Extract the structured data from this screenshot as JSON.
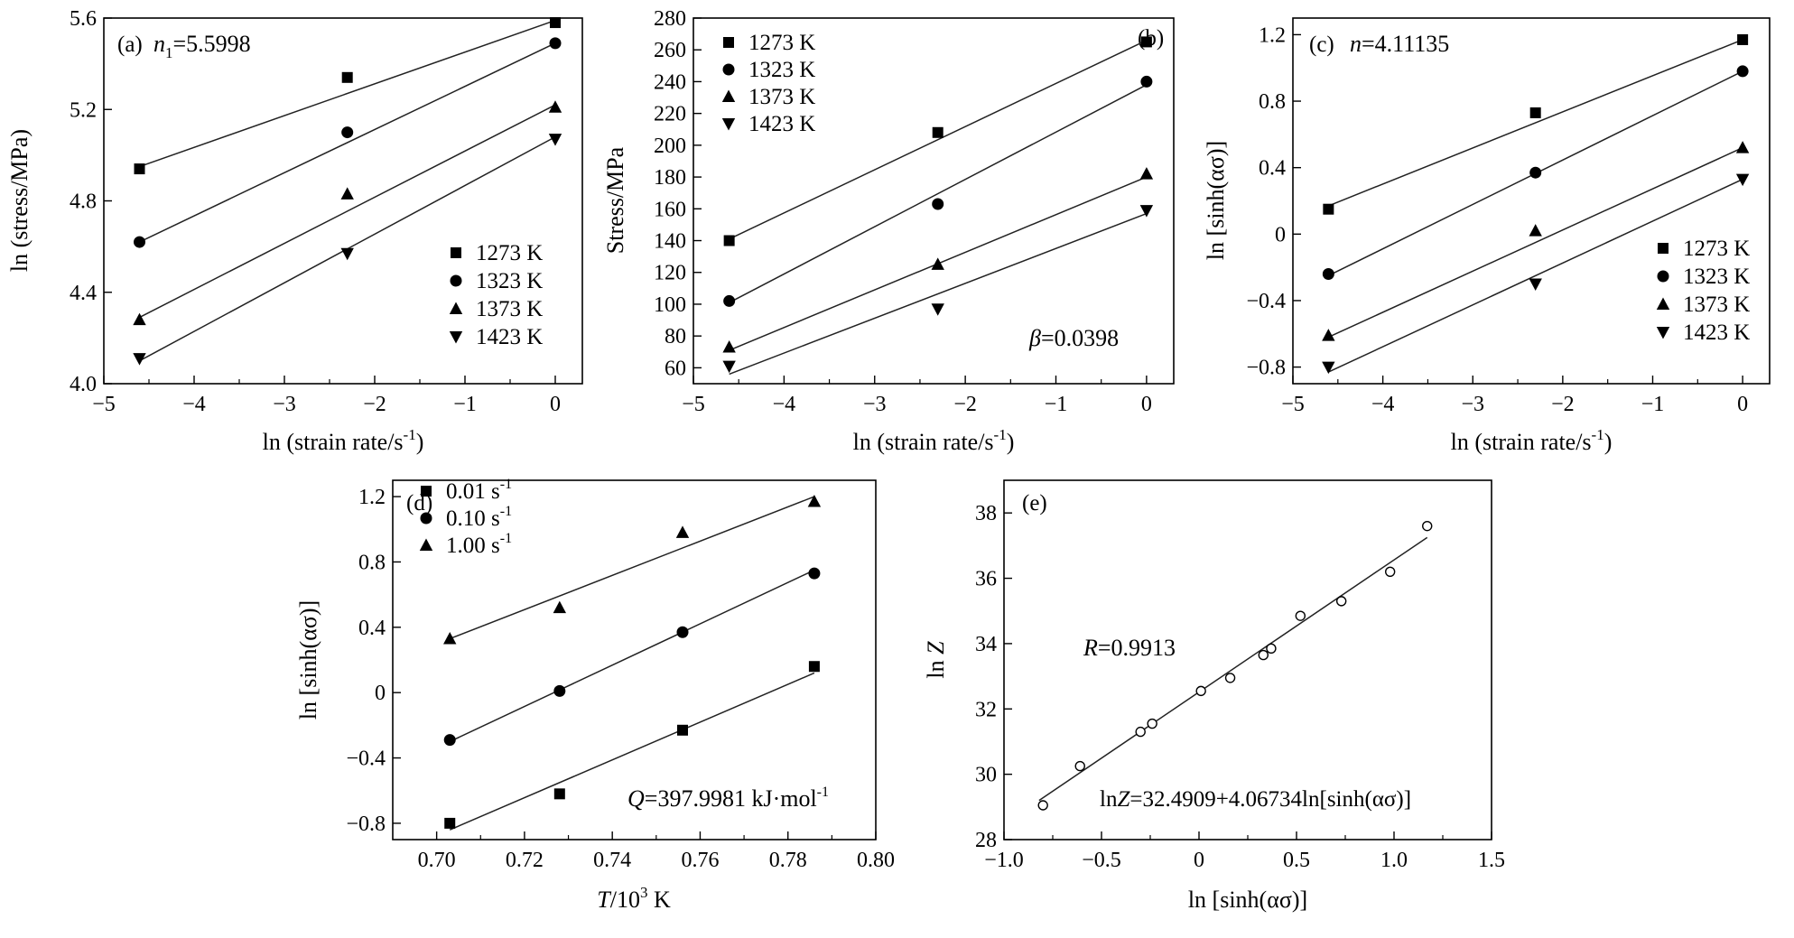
{
  "chart_data": [
    {
      "id": "a",
      "type": "scatter",
      "panel_label": "(a)",
      "annotation": {
        "pre": "",
        "italic": "n",
        "sub": "1",
        "post": "=5.5998"
      },
      "xlabel": {
        "main": "ln (strain rate/s",
        "sup": "-1",
        "tail": ")"
      },
      "ylabel": {
        "main": "ln (stress/MPa)"
      },
      "xlim": [
        -5,
        0.3
      ],
      "ylim": [
        4.0,
        5.6
      ],
      "xticks": [
        -5,
        -4,
        -3,
        -2,
        -1,
        0
      ],
      "xtick_labels": [
        "−5",
        "−4",
        "−3",
        "−2",
        "−1",
        "0"
      ],
      "yticks": [
        4.0,
        4.4,
        4.8,
        5.2,
        5.6
      ],
      "ytick_labels": [
        "4.0",
        "4.4",
        "4.8",
        "5.2",
        "5.6"
      ],
      "legend_position": "bottom-right",
      "series": [
        {
          "name": "1273 K",
          "marker": "square",
          "x": [
            -4.605,
            -2.303,
            0
          ],
          "y": [
            4.94,
            5.34,
            5.58
          ],
          "fit": [
            [
              -4.605,
              4.95
            ],
            [
              0,
              5.59
            ]
          ]
        },
        {
          "name": "1323 K",
          "marker": "circle",
          "x": [
            -4.605,
            -2.303,
            0
          ],
          "y": [
            4.62,
            5.1,
            5.49
          ],
          "fit": [
            [
              -4.605,
              4.62
            ],
            [
              0,
              5.49
            ]
          ]
        },
        {
          "name": "1373 K",
          "marker": "triangle-up",
          "x": [
            -4.605,
            -2.303,
            0
          ],
          "y": [
            4.28,
            4.83,
            5.21
          ],
          "fit": [
            [
              -4.605,
              4.29
            ],
            [
              0,
              5.22
            ]
          ]
        },
        {
          "name": "1423 K",
          "marker": "triangle-down",
          "x": [
            -4.605,
            -2.303,
            0
          ],
          "y": [
            4.11,
            4.57,
            5.07
          ],
          "fit": [
            [
              -4.605,
              4.1
            ],
            [
              0,
              5.08
            ]
          ]
        }
      ]
    },
    {
      "id": "b",
      "type": "scatter",
      "panel_label": "(b)",
      "annotation": {
        "pre": "",
        "italic": "β",
        "sub": "",
        "post": "=0.0398"
      },
      "xlabel": {
        "main": "ln (strain rate/s",
        "sup": "-1",
        "tail": ")"
      },
      "ylabel": {
        "main": "Stress/MPa"
      },
      "xlim": [
        -5,
        0.3
      ],
      "ylim": [
        50,
        280
      ],
      "xticks": [
        -5,
        -4,
        -3,
        -2,
        -1,
        0
      ],
      "xtick_labels": [
        "−5",
        "−4",
        "−3",
        "−2",
        "−1",
        "0"
      ],
      "yticks": [
        60,
        80,
        100,
        120,
        140,
        160,
        180,
        200,
        220,
        240,
        260,
        280
      ],
      "ytick_labels": [
        "60",
        "80",
        "100",
        "120",
        "140",
        "160",
        "180",
        "200",
        "220",
        "240",
        "260",
        "280"
      ],
      "legend_position": "top-left",
      "series": [
        {
          "name": "1273 K",
          "marker": "square",
          "x": [
            -4.605,
            -2.303,
            0
          ],
          "y": [
            140,
            208,
            265
          ],
          "fit": [
            [
              -4.605,
              141
            ],
            [
              0,
              266
            ]
          ]
        },
        {
          "name": "1323 K",
          "marker": "circle",
          "x": [
            -4.605,
            -2.303,
            0
          ],
          "y": [
            102,
            163,
            240
          ],
          "fit": [
            [
              -4.605,
              101
            ],
            [
              0,
              238
            ]
          ]
        },
        {
          "name": "1373 K",
          "marker": "triangle-up",
          "x": [
            -4.605,
            -2.303,
            0
          ],
          "y": [
            73,
            125,
            182
          ],
          "fit": [
            [
              -4.605,
              71
            ],
            [
              0,
              180
            ]
          ]
        },
        {
          "name": "1423 K",
          "marker": "triangle-down",
          "x": [
            -4.605,
            -2.303,
            0
          ],
          "y": [
            61,
            97,
            159
          ],
          "fit": [
            [
              -4.605,
              56
            ],
            [
              0,
              157
            ]
          ]
        }
      ]
    },
    {
      "id": "c",
      "type": "scatter",
      "panel_label": "(c)",
      "annotation": {
        "pre": "",
        "italic": "n",
        "sub": "",
        "post": "=4.11135"
      },
      "xlabel": {
        "main": "ln (strain rate/s",
        "sup": "-1",
        "tail": ")"
      },
      "ylabel": {
        "main": "ln [sinh(ασ)]"
      },
      "xlim": [
        -5,
        0.3
      ],
      "ylim": [
        -0.9,
        1.3
      ],
      "xticks": [
        -5,
        -4,
        -3,
        -2,
        -1,
        0
      ],
      "xtick_labels": [
        "−5",
        "−4",
        "−3",
        "−2",
        "−1",
        "0"
      ],
      "yticks": [
        -0.8,
        -0.4,
        0,
        0.4,
        0.8,
        1.2
      ],
      "ytick_labels": [
        "−0.8",
        "−0.4",
        "0",
        "0.4",
        "0.8",
        "1.2"
      ],
      "legend_position": "bottom-right",
      "series": [
        {
          "name": "1273 K",
          "marker": "square",
          "x": [
            -4.605,
            -2.303,
            0
          ],
          "y": [
            0.15,
            0.73,
            1.17
          ],
          "fit": [
            [
              -4.605,
              0.17
            ],
            [
              0,
              1.17
            ]
          ]
        },
        {
          "name": "1323 K",
          "marker": "circle",
          "x": [
            -4.605,
            -2.303,
            0
          ],
          "y": [
            -0.24,
            0.37,
            0.98
          ],
          "fit": [
            [
              -4.605,
              -0.25
            ],
            [
              0,
              0.98
            ]
          ]
        },
        {
          "name": "1373 K",
          "marker": "triangle-up",
          "x": [
            -4.605,
            -2.303,
            0
          ],
          "y": [
            -0.61,
            0.02,
            0.52
          ],
          "fit": [
            [
              -4.605,
              -0.62
            ],
            [
              0,
              0.52
            ]
          ]
        },
        {
          "name": "1423 K",
          "marker": "triangle-down",
          "x": [
            -4.605,
            -2.303,
            0
          ],
          "y": [
            -0.8,
            -0.3,
            0.33
          ],
          "fit": [
            [
              -4.605,
              -0.83
            ],
            [
              0,
              0.33
            ]
          ]
        }
      ]
    },
    {
      "id": "d",
      "type": "scatter",
      "panel_label": "(d)",
      "annotation": {
        "pre": "",
        "italic": "Q",
        "sub": "",
        "post": "=397.9981 kJ·mol",
        "post_sup": "-1"
      },
      "xlabel": {
        "italic": "T",
        "main": "/10",
        "sup": "3",
        "tail": " K"
      },
      "ylabel": {
        "main": "ln [sinh(ασ)]"
      },
      "xlim": [
        0.69,
        0.8
      ],
      "ylim": [
        -0.9,
        1.3
      ],
      "xticks": [
        0.7,
        0.72,
        0.74,
        0.76,
        0.78,
        0.8
      ],
      "xtick_labels": [
        "0.70",
        "0.72",
        "0.74",
        "0.76",
        "0.78",
        "0.80"
      ],
      "yticks": [
        -0.8,
        -0.4,
        0,
        0.4,
        0.8,
        1.2
      ],
      "ytick_labels": [
        "−0.8",
        "−0.4",
        "0",
        "0.4",
        "0.8",
        "1.2"
      ],
      "legend_position": "top-left",
      "series": [
        {
          "name": "0.01 s",
          "name_sup": "-1",
          "marker": "square",
          "x": [
            0.703,
            0.728,
            0.756,
            0.786
          ],
          "y": [
            -0.8,
            -0.62,
            -0.23,
            0.16
          ],
          "fit": [
            [
              0.703,
              -0.84
            ],
            [
              0.786,
              0.12
            ]
          ]
        },
        {
          "name": "0.10 s",
          "name_sup": "-1",
          "marker": "circle",
          "x": [
            0.703,
            0.728,
            0.756,
            0.786
          ],
          "y": [
            -0.29,
            0.01,
            0.37,
            0.73
          ],
          "fit": [
            [
              0.703,
              -0.3
            ],
            [
              0.786,
              0.75
            ]
          ]
        },
        {
          "name": "1.00 s",
          "name_sup": "-1",
          "marker": "triangle-up",
          "x": [
            0.703,
            0.728,
            0.756,
            0.786
          ],
          "y": [
            0.33,
            0.52,
            0.98,
            1.17
          ],
          "fit": [
            [
              0.703,
              0.33
            ],
            [
              0.786,
              1.2
            ]
          ]
        }
      ]
    },
    {
      "id": "e",
      "type": "scatter",
      "panel_label": "(e)",
      "annotation": {
        "pre": "",
        "italic": "R",
        "sub": "",
        "post": "=0.9913"
      },
      "equation": {
        "pre": "ln",
        "italic": "Z",
        "post": "=32.4909+4.06734ln[sinh(ασ)]"
      },
      "xlabel": {
        "main": "ln [sinh(ασ)]"
      },
      "ylabel": {
        "main": "ln ",
        "italic": "Z"
      },
      "xlim": [
        -1.0,
        1.5
      ],
      "ylim": [
        28,
        39
      ],
      "xticks": [
        -1.0,
        -0.5,
        0,
        0.5,
        1.0,
        1.5
      ],
      "xtick_labels": [
        "−1.0",
        "−0.5",
        "0",
        "0.5",
        "1.0",
        "1.5"
      ],
      "yticks": [
        28,
        30,
        32,
        34,
        36,
        38
      ],
      "ytick_labels": [
        "28",
        "30",
        "32",
        "34",
        "36",
        "38"
      ],
      "series": [
        {
          "marker": "open-circle",
          "x": [
            -0.8,
            -0.61,
            -0.3,
            -0.24,
            0.01,
            0.16,
            0.33,
            0.37,
            0.52,
            0.73,
            0.98,
            1.17
          ],
          "y": [
            29.05,
            30.25,
            31.3,
            31.55,
            32.55,
            32.95,
            33.65,
            33.85,
            34.85,
            35.3,
            36.2,
            37.6
          ],
          "fit": [
            [
              -0.82,
              29.2
            ],
            [
              1.17,
              37.25
            ]
          ]
        }
      ]
    }
  ]
}
